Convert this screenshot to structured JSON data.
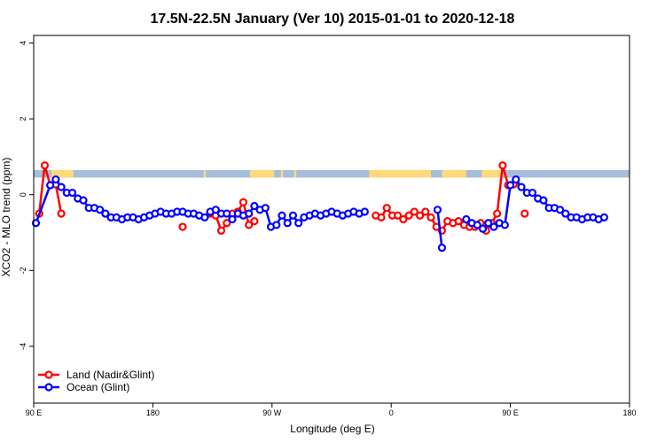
{
  "chart_data": {
    "type": "line",
    "title": "17.5N-22.5N January (Ver 10)   2015-01-01 to 2020-12-18",
    "xlabel": "Longitude (deg E)",
    "ylabel": "XCO2 - MLO trend (ppm)",
    "xlim": [
      -90,
      180
    ],
    "ylim": [
      -5.5,
      4.2
    ],
    "x_ticks": [
      {
        "value": -90,
        "label": "90 E"
      },
      {
        "value": -36,
        "label": "180"
      },
      {
        "value": 18,
        "label": "90 W"
      },
      {
        "value": 72,
        "label": "0"
      },
      {
        "value": 126,
        "label": "90 E"
      },
      {
        "value": 180,
        "label": "180"
      }
    ],
    "y_ticks": [
      {
        "value": -4,
        "label": "-4"
      },
      {
        "value": -2,
        "label": "-2"
      },
      {
        "value": 0,
        "label": "0"
      },
      {
        "value": 2,
        "label": "2"
      },
      {
        "value": 4,
        "label": "4"
      }
    ],
    "legend_position": "bottom-left",
    "land_sea_band": {
      "y_range": [
        0.45,
        0.65
      ],
      "ocean_color": "#a6bddb",
      "land_color": "#ffd97a",
      "land_x_ranges": [
        [
          -82,
          -72
        ],
        [
          -13,
          -12
        ],
        [
          8,
          19
        ],
        [
          22,
          23
        ],
        [
          28,
          29
        ],
        [
          62,
          90
        ],
        [
          95,
          106
        ],
        [
          113,
          122
        ]
      ]
    },
    "series": [
      {
        "name": "Land (Nadir&Glint)",
        "color": "#ff0000",
        "segments": [
          [
            [
              -87.5,
              -0.5
            ],
            [
              -85,
              0.77
            ],
            [
              -82.5,
              0.25
            ],
            [
              -80,
              0.27
            ],
            [
              -77.5,
              -0.5
            ]
          ],
          [
            [
              -10,
              -0.5
            ],
            [
              -7.5,
              -0.55
            ],
            [
              -5,
              -0.95
            ],
            [
              -2.5,
              -0.75
            ],
            [
              0,
              -0.5
            ],
            [
              2.5,
              -0.45
            ],
            [
              5,
              -0.2
            ],
            [
              7.5,
              -0.8
            ],
            [
              10,
              -0.7
            ]
          ],
          [
            [
              65,
              -0.55
            ],
            [
              67.5,
              -0.6
            ],
            [
              70,
              -0.35
            ],
            [
              72.5,
              -0.55
            ],
            [
              75,
              -0.55
            ],
            [
              77.5,
              -0.65
            ],
            [
              80,
              -0.55
            ],
            [
              82.5,
              -0.45
            ],
            [
              85,
              -0.55
            ],
            [
              87.5,
              -0.45
            ],
            [
              90,
              -0.6
            ],
            [
              92.5,
              -0.85
            ],
            [
              95,
              -0.95
            ],
            [
              97.5,
              -0.7
            ],
            [
              100,
              -0.75
            ],
            [
              102.5,
              -0.7
            ],
            [
              105,
              -0.8
            ],
            [
              107.5,
              -0.85
            ],
            [
              110,
              -0.85
            ],
            [
              112.5,
              -0.75
            ],
            [
              115,
              -0.95
            ],
            [
              117.5,
              -0.75
            ],
            [
              120,
              -0.5
            ],
            [
              122.5,
              0.77
            ],
            [
              125,
              0.25
            ],
            [
              127.5,
              0.27
            ]
          ]
        ],
        "points": [
          [
            -22.5,
            -0.85
          ],
          [
            132.5,
            -0.5
          ]
        ]
      },
      {
        "name": "Ocean (Glint)",
        "color": "#0000ff",
        "segments": [
          [
            [
              -89,
              -0.75
            ],
            [
              -82.5,
              0.25
            ],
            [
              -80,
              0.4
            ],
            [
              -77.5,
              0.2
            ],
            [
              -75,
              0.05
            ],
            [
              -72.5,
              0.05
            ],
            [
              -70,
              -0.1
            ],
            [
              -67.5,
              -0.15
            ],
            [
              -65,
              -0.35
            ],
            [
              -62.5,
              -0.35
            ],
            [
              -60,
              -0.4
            ],
            [
              -57.5,
              -0.5
            ],
            [
              -55,
              -0.6
            ],
            [
              -52.5,
              -0.6
            ],
            [
              -50,
              -0.65
            ],
            [
              -47.5,
              -0.6
            ],
            [
              -45,
              -0.6
            ],
            [
              -42.5,
              -0.65
            ],
            [
              -40,
              -0.6
            ],
            [
              -37.5,
              -0.55
            ],
            [
              -35,
              -0.5
            ],
            [
              -32.5,
              -0.45
            ],
            [
              -30,
              -0.5
            ],
            [
              -27.5,
              -0.5
            ],
            [
              -25,
              -0.45
            ],
            [
              -22.5,
              -0.45
            ],
            [
              -20,
              -0.5
            ],
            [
              -17.5,
              -0.5
            ],
            [
              -15,
              -0.55
            ],
            [
              -12.5,
              -0.6
            ],
            [
              -10,
              -0.45
            ],
            [
              -7.5,
              -0.4
            ],
            [
              -5,
              -0.5
            ],
            [
              -2.5,
              -0.5
            ],
            [
              0,
              -0.65
            ],
            [
              2.5,
              -0.5
            ],
            [
              5,
              -0.55
            ],
            [
              7.5,
              -0.5
            ],
            [
              10,
              -0.3
            ],
            [
              12.5,
              -0.4
            ],
            [
              15,
              -0.35
            ],
            [
              17.5,
              -0.85
            ],
            [
              20,
              -0.8
            ],
            [
              22.5,
              -0.55
            ],
            [
              25,
              -0.75
            ],
            [
              27.5,
              -0.55
            ],
            [
              30,
              -0.75
            ],
            [
              32.5,
              -0.6
            ],
            [
              35,
              -0.55
            ],
            [
              37.5,
              -0.5
            ],
            [
              40,
              -0.55
            ],
            [
              42.5,
              -0.5
            ],
            [
              45,
              -0.45
            ],
            [
              47.5,
              -0.5
            ],
            [
              50,
              -0.55
            ],
            [
              52.5,
              -0.5
            ],
            [
              55,
              -0.45
            ],
            [
              57.5,
              -0.5
            ],
            [
              60,
              -0.45
            ]
          ],
          [
            [
              93,
              -0.4
            ],
            [
              95,
              -1.4
            ]
          ],
          [
            [
              106,
              -0.65
            ],
            [
              108.5,
              -0.75
            ],
            [
              111,
              -0.8
            ],
            [
              113.5,
              -0.9
            ],
            [
              116,
              -0.75
            ],
            [
              118.5,
              -0.85
            ],
            [
              121,
              -0.75
            ],
            [
              123.5,
              -0.8
            ],
            [
              126,
              0.25
            ],
            [
              128.5,
              0.4
            ],
            [
              131,
              0.2
            ],
            [
              133.5,
              0.05
            ],
            [
              136,
              0.05
            ],
            [
              138.5,
              -0.1
            ],
            [
              141,
              -0.15
            ],
            [
              143.5,
              -0.35
            ],
            [
              146,
              -0.35
            ],
            [
              148.5,
              -0.4
            ],
            [
              151,
              -0.5
            ],
            [
              153.5,
              -0.6
            ],
            [
              156,
              -0.6
            ],
            [
              158.5,
              -0.65
            ],
            [
              161,
              -0.6
            ],
            [
              163.5,
              -0.6
            ],
            [
              166,
              -0.65
            ],
            [
              168.5,
              -0.6
            ]
          ]
        ],
        "points": []
      }
    ]
  }
}
